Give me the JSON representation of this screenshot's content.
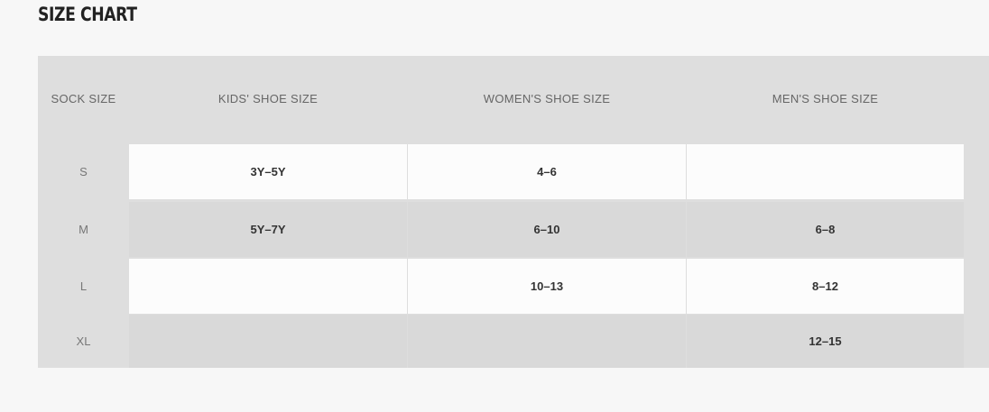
{
  "title": "SIZE CHART",
  "headers": [
    "SOCK SIZE",
    "KIDS' SHOE SIZE",
    "WOMEN'S SHOE SIZE",
    "MEN'S SHOE SIZE"
  ],
  "rows": [
    {
      "sock": "S",
      "kids": "3Y–5Y",
      "women": "4–6",
      "men": ""
    },
    {
      "sock": "M",
      "kids": "5Y–7Y",
      "women": "6–10",
      "men": "6–8"
    },
    {
      "sock": "L",
      "kids": "",
      "women": "10–13",
      "men": "8–12"
    },
    {
      "sock": "XL",
      "kids": "",
      "women": "",
      "men": "12–15"
    }
  ]
}
